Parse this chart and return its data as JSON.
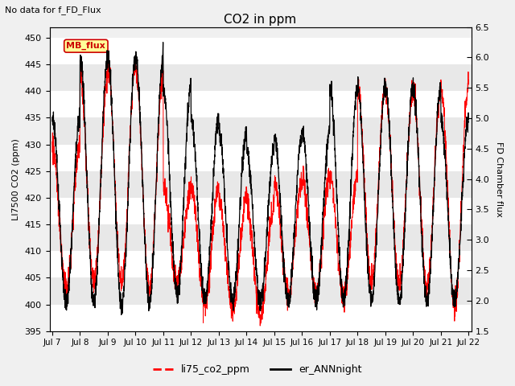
{
  "title": "CO2 in ppm",
  "subtitle": "No data for f_FD_Flux",
  "ylabel_left": "LI7500 CO2 (ppm)",
  "ylabel_right": "FD Chamber flux",
  "ylim_left": [
    395,
    452
  ],
  "ylim_right": [
    1.5,
    6.5
  ],
  "yticks_left": [
    395,
    400,
    405,
    410,
    415,
    420,
    425,
    430,
    435,
    440,
    445,
    450
  ],
  "yticks_right": [
    1.5,
    2.0,
    2.5,
    3.0,
    3.5,
    4.0,
    4.5,
    5.0,
    5.5,
    6.0,
    6.5
  ],
  "xtick_labels": [
    "Jul 7",
    "Jul 8",
    "Jul 9",
    "Jul 10",
    "Jul 11",
    "Jul 12",
    "Jul 13",
    "Jul 14",
    "Jul 15",
    "Jul 16",
    "Jul 17",
    "Jul 18",
    "Jul 19",
    "Jul 20",
    "Jul 21",
    "Jul 22"
  ],
  "line1_color": "#ff0000",
  "line1_label": "li75_co2_ppm",
  "line2_color": "#000000",
  "line2_label": "er_ANNnight",
  "annotation_text": "MB_flux",
  "annotation_color": "#cc0000",
  "annotation_bg": "#ffff99",
  "annotation_border": "#cc0000",
  "bg_stripe_color": "#e8e8e8",
  "grid_color": "#ffffff",
  "fig_bg": "#f0f0f0"
}
